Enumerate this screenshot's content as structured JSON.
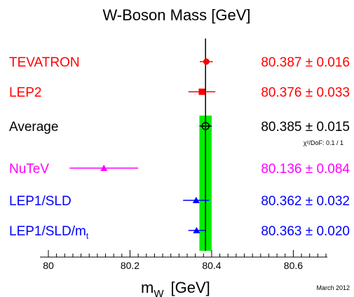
{
  "chart_data": {
    "type": "scatter",
    "title": "W-Boson Mass  [GeV]",
    "xlabel_main": "m",
    "xlabel_sub": "W",
    "xlabel_unit": "[GeV]",
    "xlim": [
      80,
      80.68
    ],
    "x_ticks": [
      "80",
      "80.2",
      "80.4",
      "80.6"
    ],
    "x_tick_values": [
      80,
      80.2,
      80.4,
      80.6
    ],
    "date_note": "March 2012",
    "average_band": {
      "center": 80.385,
      "error": 0.015,
      "color": "#00ee00"
    },
    "reference_line": {
      "x": 80.385,
      "color": "#000000"
    },
    "measurements": [
      {
        "label": "TEVATRON",
        "label_sub": "",
        "value": 80.387,
        "error": 0.016,
        "value_text": "80.387 ± 0.016",
        "color": "#ff0000",
        "marker": "circle"
      },
      {
        "label": "LEP2",
        "label_sub": "",
        "value": 80.376,
        "error": 0.033,
        "value_text": "80.376 ± 0.033",
        "color": "#ff0000",
        "marker": "square"
      },
      {
        "label": "Average",
        "label_sub": "",
        "value": 80.385,
        "error": 0.015,
        "value_text": "80.385 ± 0.015",
        "note": "χ²/DoF: 0.1 / 1",
        "color": "#000000",
        "marker": "open-circle"
      },
      {
        "label": "NuTeV",
        "label_sub": "",
        "value": 80.136,
        "error": 0.084,
        "value_text": "80.136 ± 0.084",
        "color": "#ff00ff",
        "marker": "triangle"
      },
      {
        "label": "LEP1/SLD",
        "label_sub": "",
        "value": 80.362,
        "error": 0.032,
        "value_text": "80.362 ± 0.032",
        "color": "#0000ff",
        "marker": "triangle"
      },
      {
        "label": "LEP1/SLD/m",
        "label_sub": "t",
        "value": 80.363,
        "error": 0.02,
        "value_text": "80.363 ± 0.020",
        "color": "#0000ff",
        "marker": "triangle"
      }
    ]
  }
}
